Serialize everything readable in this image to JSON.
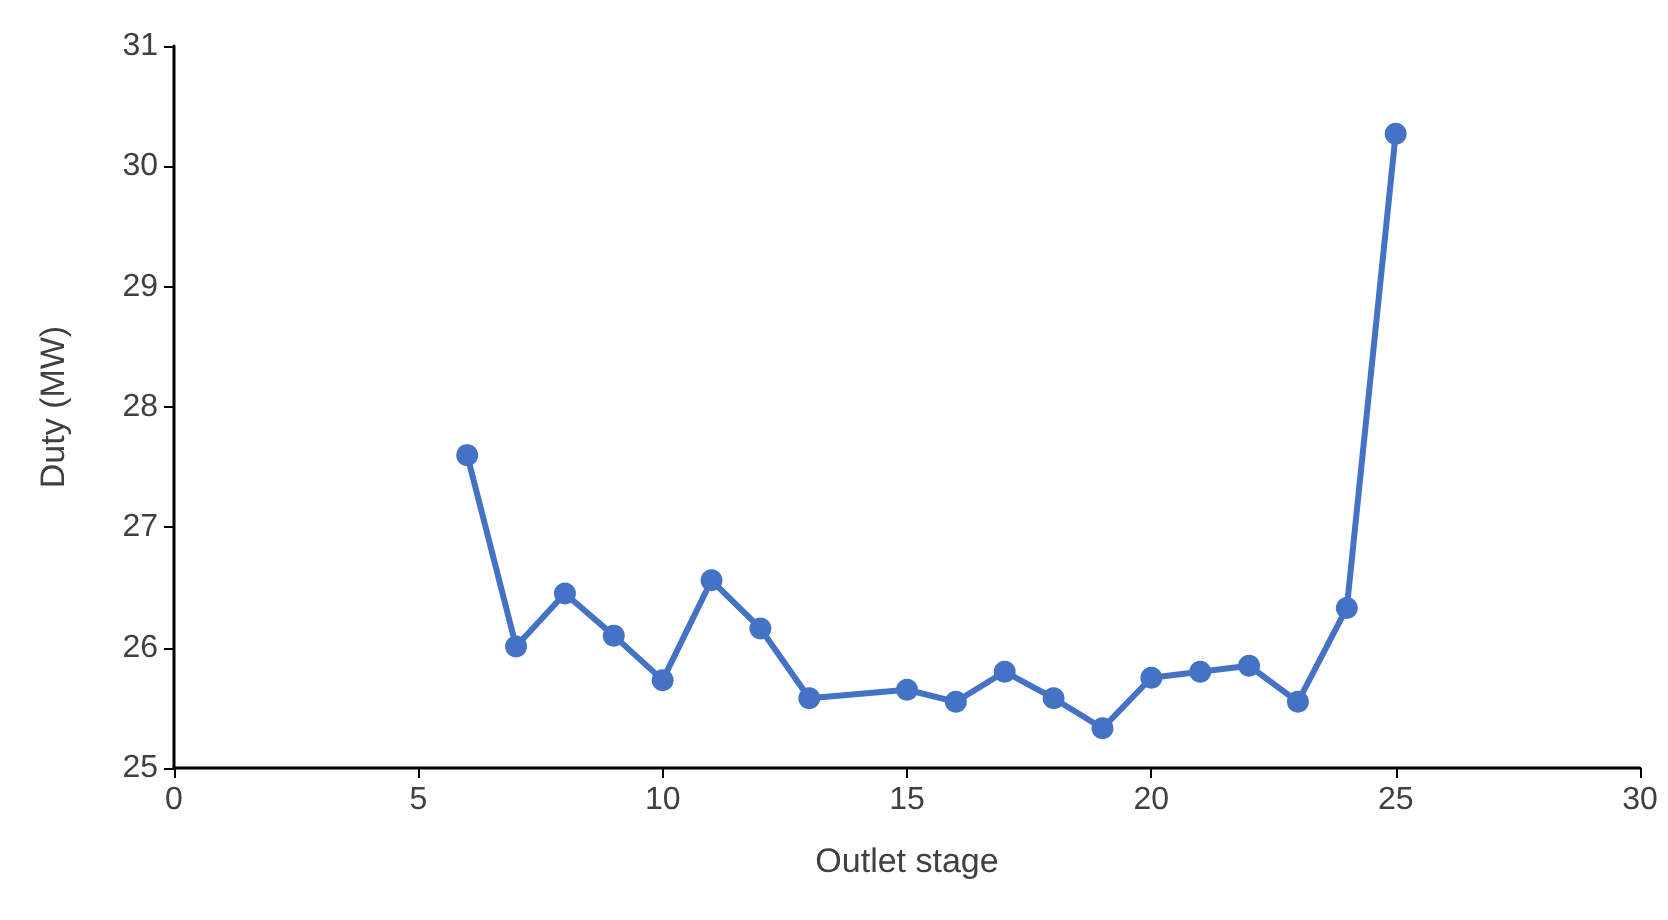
{
  "chart_data": {
    "type": "line",
    "xlabel": "Outlet stage",
    "ylabel": "Duty (MW)",
    "x": [
      6,
      7,
      8,
      9,
      10,
      11,
      12,
      13,
      15,
      16,
      17,
      18,
      19,
      20,
      21,
      22,
      23,
      24,
      25
    ],
    "series": [
      {
        "color": "#4472c4",
        "values": [
          27.6,
          26.01,
          26.45,
          26.1,
          25.73,
          26.56,
          26.16,
          25.58,
          25.65,
          25.55,
          25.8,
          25.58,
          25.33,
          25.75,
          25.8,
          25.85,
          25.55,
          26.33,
          30.27
        ]
      }
    ],
    "xlim": [
      0,
      30
    ],
    "xticks": [
      0,
      5,
      10,
      15,
      20,
      25,
      30
    ],
    "ylim": [
      25,
      31
    ],
    "yticks": [
      25,
      26,
      27,
      28,
      29,
      30,
      31
    ],
    "grid": false,
    "marker": "circle",
    "line_style": "solid"
  }
}
